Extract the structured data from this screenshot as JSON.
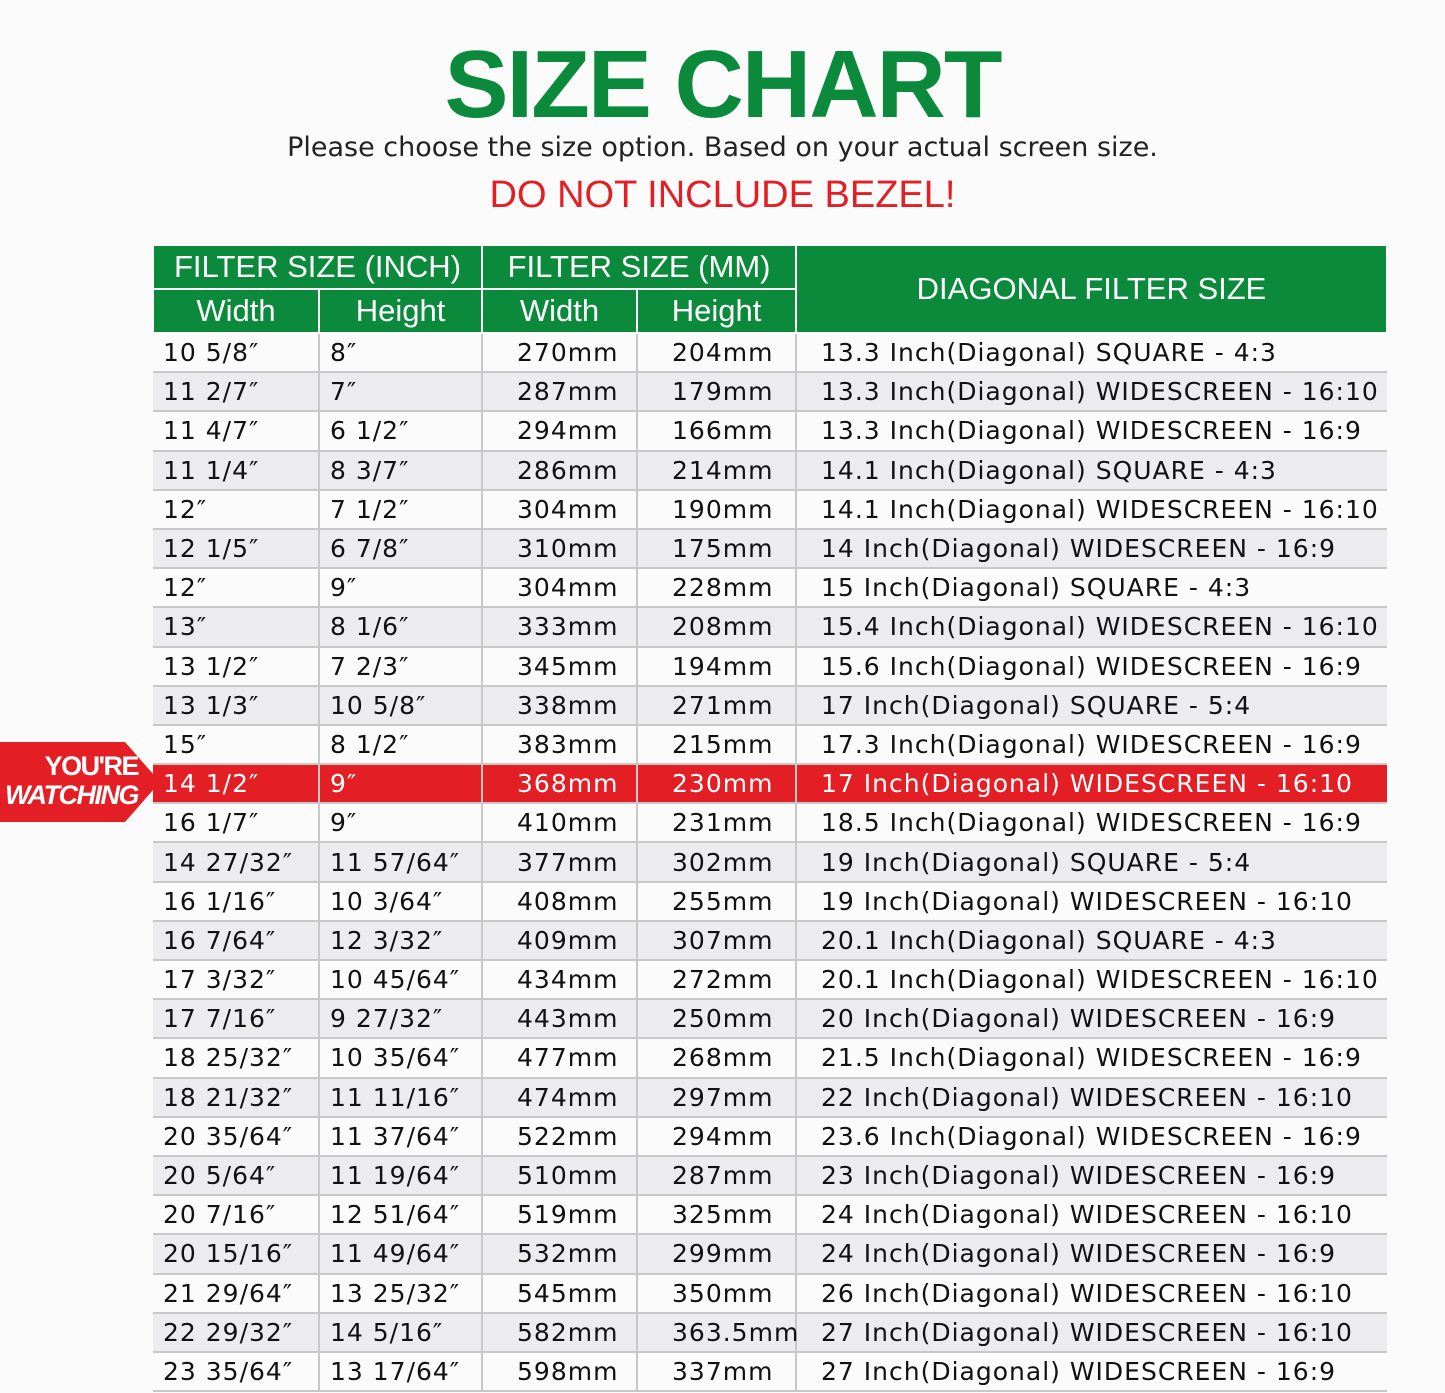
{
  "header": {
    "title": "SIZE CHART",
    "subtitle": "Please choose the size option. Based on your actual screen size.",
    "warning": "DO NOT INCLUDE BEZEL!"
  },
  "table": {
    "group_inch": "FILTER SIZE (INCH)",
    "group_mm": "FILTER SIZE (MM)",
    "diagonal": "DIAGONAL FILTER SIZE",
    "width": "Width",
    "height": "Height",
    "highlight_row": 11,
    "highlight_color": "#e31e24",
    "accent_color": "#0b8a3c",
    "rows": [
      [
        "10 5/8″",
        "8″",
        "270mm",
        "204mm",
        "13.3 Inch(Diagonal) SQUARE - 4:3"
      ],
      [
        "11 2/7″",
        "7″",
        "287mm",
        "179mm",
        "13.3 Inch(Diagonal) WIDESCREEN - 16:10"
      ],
      [
        "11 4/7″",
        "6 1/2″",
        "294mm",
        "166mm",
        "13.3 Inch(Diagonal) WIDESCREEN - 16:9"
      ],
      [
        "11 1/4″",
        "8 3/7″",
        "286mm",
        "214mm",
        "14.1 Inch(Diagonal) SQUARE - 4:3"
      ],
      [
        "12″",
        "7 1/2″",
        "304mm",
        "190mm",
        "14.1 Inch(Diagonal) WIDESCREEN - 16:10"
      ],
      [
        "12 1/5″",
        "6 7/8″",
        "310mm",
        "175mm",
        "14 Inch(Diagonal) WIDESCREEN - 16:9"
      ],
      [
        "12″",
        "9″",
        "304mm",
        "228mm",
        "15 Inch(Diagonal) SQUARE - 4:3"
      ],
      [
        "13″",
        "8 1/6″",
        "333mm",
        "208mm",
        "15.4 Inch(Diagonal) WIDESCREEN - 16:10"
      ],
      [
        "13 1/2″",
        "7 2/3″",
        "345mm",
        "194mm",
        "15.6 Inch(Diagonal) WIDESCREEN - 16:9"
      ],
      [
        "13 1/3″",
        "10 5/8″",
        "338mm",
        "271mm",
        "17 Inch(Diagonal) SQUARE - 5:4"
      ],
      [
        "15″",
        "8 1/2″",
        "383mm",
        "215mm",
        "17.3 Inch(Diagonal) WIDESCREEN - 16:9"
      ],
      [
        "14 1/2″",
        "9″",
        "368mm",
        "230mm",
        "17 Inch(Diagonal) WIDESCREEN - 16:10"
      ],
      [
        "16 1/7″",
        "9″",
        "410mm",
        "231mm",
        "18.5 Inch(Diagonal) WIDESCREEN - 16:9"
      ],
      [
        "14 27/32″",
        "11 57/64″",
        "377mm",
        "302mm",
        "19 Inch(Diagonal) SQUARE - 5:4"
      ],
      [
        "16 1/16″",
        "10 3/64″",
        "408mm",
        "255mm",
        "19 Inch(Diagonal) WIDESCREEN - 16:10"
      ],
      [
        "16 7/64″",
        "12 3/32″",
        "409mm",
        "307mm",
        "20.1 Inch(Diagonal) SQUARE - 4:3"
      ],
      [
        "17 3/32″",
        "10 45/64″",
        "434mm",
        "272mm",
        "20.1 Inch(Diagonal) WIDESCREEN - 16:10"
      ],
      [
        "17 7/16″",
        "9 27/32″",
        "443mm",
        "250mm",
        "20 Inch(Diagonal) WIDESCREEN - 16:9"
      ],
      [
        "18 25/32″",
        "10 35/64″",
        "477mm",
        "268mm",
        "21.5 Inch(Diagonal) WIDESCREEN - 16:9"
      ],
      [
        "18 21/32″",
        "11 11/16″",
        "474mm",
        "297mm",
        "22 Inch(Diagonal) WIDESCREEN - 16:10"
      ],
      [
        "20 35/64″",
        "11 37/64″",
        "522mm",
        "294mm",
        "23.6 Inch(Diagonal) WIDESCREEN - 16:9"
      ],
      [
        "20 5/64″",
        "11 19/64″",
        "510mm",
        "287mm",
        "23 Inch(Diagonal) WIDESCREEN - 16:9"
      ],
      [
        "20 7/16″",
        "12 51/64″",
        "519mm",
        "325mm",
        "24 Inch(Diagonal) WIDESCREEN - 16:10"
      ],
      [
        "20 15/16″",
        "11 49/64″",
        "532mm",
        "299mm",
        "24 Inch(Diagonal) WIDESCREEN - 16:9"
      ],
      [
        "21 29/64″",
        "13 25/32″",
        "545mm",
        "350mm",
        "26 Inch(Diagonal) WIDESCREEN - 16:10"
      ],
      [
        "22 29/32″",
        "14 5/16″",
        "582mm",
        "363.5mm",
        "27 Inch(Diagonal) WIDESCREEN - 16:10"
      ],
      [
        "23 35/64″",
        "13 17/64″",
        "598mm",
        "337mm",
        "27 Inch(Diagonal) WIDESCREEN - 16:9"
      ]
    ]
  },
  "badge": {
    "line1": "YOU'RE",
    "line2": "WATCHING"
  }
}
